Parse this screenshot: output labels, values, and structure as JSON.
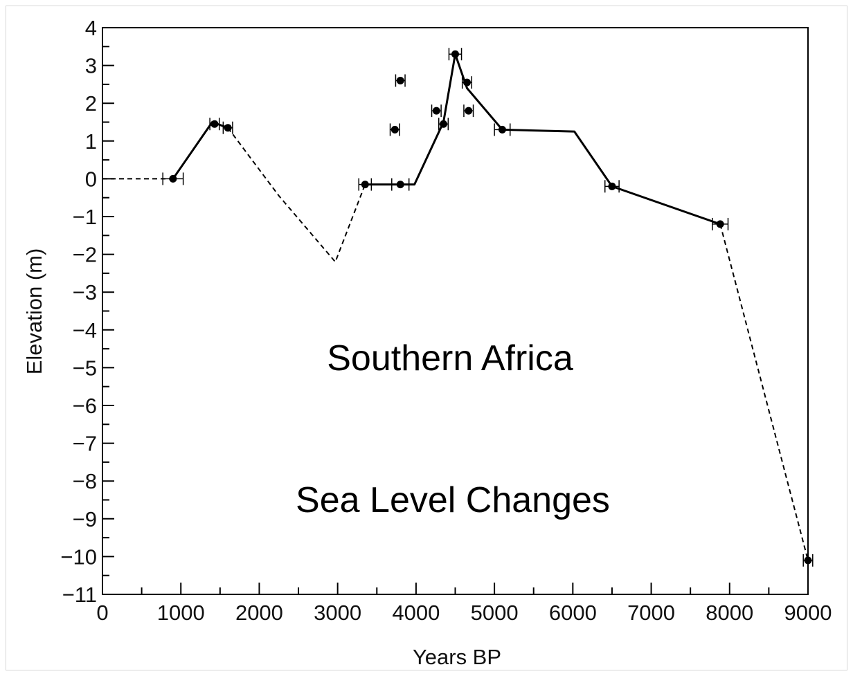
{
  "chart_data": {
    "type": "line",
    "title": "",
    "xlabel": "Years BP",
    "ylabel": "Elevation (m)",
    "xlim": [
      0,
      9000
    ],
    "ylim": [
      -11,
      4
    ],
    "x_ticks": [
      0,
      1000,
      2000,
      3000,
      4000,
      5000,
      6000,
      7000,
      8000,
      9000
    ],
    "x_tick_labels": [
      "0",
      "1000",
      "2000",
      "3000",
      "4000",
      "5000",
      "6000",
      "7000",
      "8000",
      "9000"
    ],
    "y_ticks": [
      4,
      3,
      2,
      1,
      0,
      -1,
      -2,
      -3,
      -4,
      -5,
      -6,
      -7,
      -8,
      -9,
      -10,
      -11
    ],
    "y_tick_labels": [
      "4",
      "3",
      "2",
      "1",
      "0",
      "−1",
      "−2",
      "−3",
      "−4",
      "−5",
      "−6",
      "−7",
      "−8",
      "−9",
      "−10",
      "−11"
    ],
    "grid": false,
    "annotations": [
      "Southern Africa",
      "Sea Level Changes"
    ],
    "series": [
      {
        "style": "dashed",
        "points": [
          [
            0,
            0
          ],
          [
            900,
            0
          ]
        ]
      },
      {
        "style": "solid",
        "points": [
          [
            900,
            0
          ],
          [
            1400,
            1.5
          ],
          [
            1600,
            1.35
          ]
        ]
      },
      {
        "style": "dashed",
        "points": [
          [
            1600,
            1.35
          ],
          [
            2250,
            -0.45
          ],
          [
            2970,
            -2.2
          ],
          [
            3350,
            -0.15
          ]
        ]
      },
      {
        "style": "solid",
        "points": [
          [
            3350,
            -0.15
          ],
          [
            3800,
            -0.15
          ],
          [
            3980,
            -0.15
          ],
          [
            4350,
            1.5
          ],
          [
            4500,
            3.3
          ],
          [
            4650,
            2.4
          ],
          [
            5100,
            1.3
          ],
          [
            6020,
            1.25
          ],
          [
            6500,
            -0.2
          ],
          [
            7880,
            -1.2
          ]
        ]
      },
      {
        "style": "dashed",
        "points": [
          [
            7880,
            -1.2
          ],
          [
            9000,
            -10.1
          ]
        ]
      }
    ],
    "data_points": [
      {
        "x": 900,
        "y": 0,
        "xerr": 130
      },
      {
        "x": 1430,
        "y": 1.45,
        "xerr": 60
      },
      {
        "x": 1600,
        "y": 1.35,
        "xerr": 60
      },
      {
        "x": 3350,
        "y": -0.15,
        "xerr": 80
      },
      {
        "x": 3730,
        "y": 1.3,
        "xerr": 60
      },
      {
        "x": 3800,
        "y": 2.6,
        "xerr": 60
      },
      {
        "x": 3800,
        "y": -0.15,
        "xerr": 110
      },
      {
        "x": 4260,
        "y": 1.8,
        "xerr": 60
      },
      {
        "x": 4350,
        "y": 1.45,
        "xerr": 60
      },
      {
        "x": 4500,
        "y": 3.3,
        "xerr": 80
      },
      {
        "x": 4650,
        "y": 2.55,
        "xerr": 60
      },
      {
        "x": 4670,
        "y": 1.8,
        "xerr": 60
      },
      {
        "x": 5100,
        "y": 1.3,
        "xerr": 100
      },
      {
        "x": 6500,
        "y": -0.2,
        "xerr": 90
      },
      {
        "x": 7880,
        "y": -1.2,
        "xerr": 100
      },
      {
        "x": 9000,
        "y": -10.1,
        "xerr": 60
      }
    ]
  }
}
